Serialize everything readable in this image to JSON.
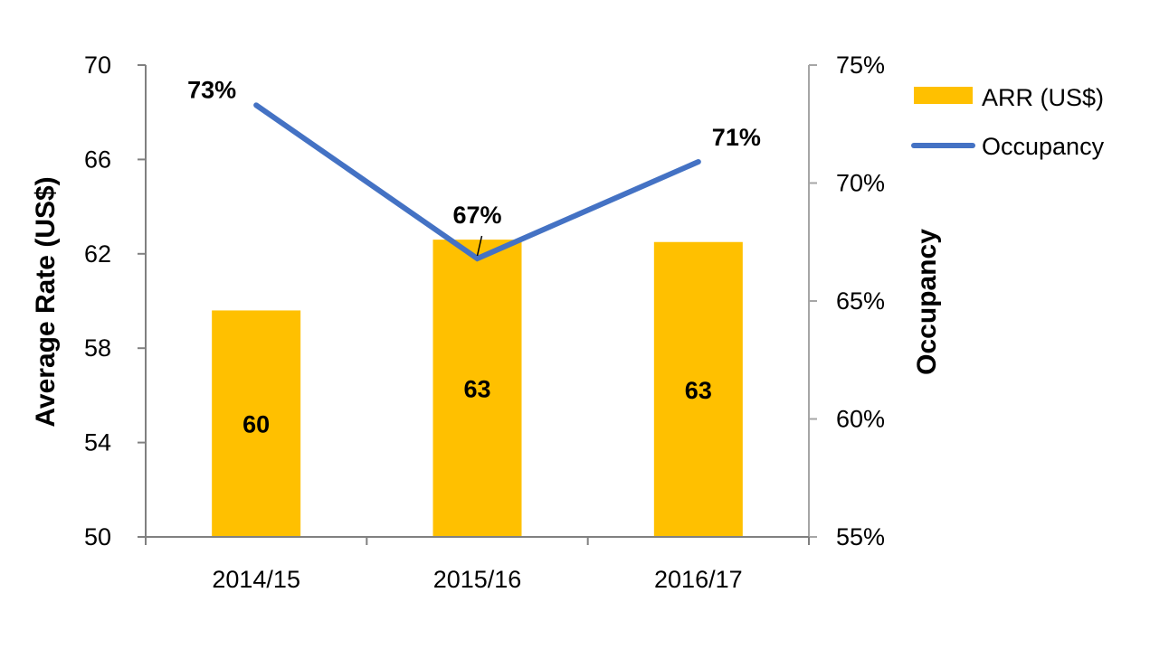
{
  "chart_data": {
    "type": "bar",
    "categories": [
      "2014/15",
      "2015/16",
      "2016/17"
    ],
    "series": [
      {
        "name": "ARR (US$)",
        "type": "bar",
        "axis": "left",
        "values": [
          59.6,
          62.6,
          62.5
        ],
        "labels": [
          "60",
          "63",
          "63"
        ]
      },
      {
        "name": "Occupancy",
        "type": "line",
        "axis": "right",
        "values": [
          0.733,
          0.668,
          0.709
        ],
        "labels": [
          "73%",
          "67%",
          "71%"
        ]
      }
    ],
    "ylabel": "Average Rate (US$)",
    "y2label": "Occupancy",
    "ylim": [
      50,
      70
    ],
    "y_ticks": [
      "50",
      "54",
      "58",
      "62",
      "66",
      "70"
    ],
    "y2lim": [
      0.55,
      0.75
    ],
    "y2_ticks": [
      "55%",
      "60%",
      "65%",
      "70%",
      "75%"
    ],
    "legend_position": "top-right",
    "grid": false,
    "colors": {
      "bar": "#FFC000",
      "line": "#4472C4",
      "axis": "#808080",
      "y2axis": "#A6A6A6"
    }
  }
}
